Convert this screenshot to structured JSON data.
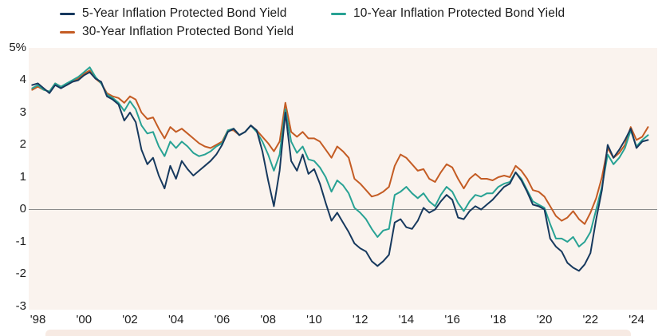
{
  "figure": {
    "background_color": "#ffffff",
    "plot_background_color": "#faf3ee",
    "zero_line_color": "#8c8c8c",
    "text_color": "#1c1c1c",
    "footer_strip_color": "#f7eae3"
  },
  "chart_data": {
    "type": "line",
    "title": "",
    "xlabel": "",
    "ylabel": "",
    "y_unit": "%",
    "grid": false,
    "zero_line": true,
    "legend_position": "top-left, wrapped in two rows",
    "xlim": [
      1997.6,
      2024.9
    ],
    "ylim": [
      -3.1,
      5
    ],
    "x_ticks": {
      "values": [
        1998,
        2000,
        2002,
        2004,
        2006,
        2008,
        2010,
        2012,
        2014,
        2016,
        2018,
        2020,
        2022,
        2024
      ],
      "labels": [
        "'98",
        "'00",
        "'02",
        "'04",
        "'06",
        "'08",
        "'10",
        "'12",
        "'14",
        "'16",
        "'18",
        "'20",
        "'22",
        "'24"
      ]
    },
    "y_ticks": {
      "values": [
        5,
        4,
        3,
        2,
        1,
        0,
        -1,
        -2,
        -3
      ],
      "labels": [
        "5%",
        "4",
        "3",
        "2",
        "1",
        "0",
        "-1",
        "-2",
        "-3"
      ]
    },
    "x": [
      1997.75,
      1998.0,
      1998.25,
      1998.5,
      1998.75,
      1999.0,
      1999.25,
      1999.5,
      1999.75,
      2000.0,
      2000.25,
      2000.5,
      2000.75,
      2001.0,
      2001.25,
      2001.5,
      2001.75,
      2002.0,
      2002.25,
      2002.5,
      2002.75,
      2003.0,
      2003.25,
      2003.5,
      2003.75,
      2004.0,
      2004.25,
      2004.5,
      2004.75,
      2005.0,
      2005.25,
      2005.5,
      2005.75,
      2006.0,
      2006.25,
      2006.5,
      2006.75,
      2007.0,
      2007.25,
      2007.5,
      2007.75,
      2008.0,
      2008.25,
      2008.5,
      2008.75,
      2009.0,
      2009.25,
      2009.5,
      2009.75,
      2010.0,
      2010.25,
      2010.5,
      2010.75,
      2011.0,
      2011.25,
      2011.5,
      2011.75,
      2012.0,
      2012.25,
      2012.5,
      2012.75,
      2013.0,
      2013.25,
      2013.5,
      2013.75,
      2014.0,
      2014.25,
      2014.5,
      2014.75,
      2015.0,
      2015.25,
      2015.5,
      2015.75,
      2016.0,
      2016.25,
      2016.5,
      2016.75,
      2017.0,
      2017.25,
      2017.5,
      2017.75,
      2018.0,
      2018.25,
      2018.5,
      2018.75,
      2019.0,
      2019.25,
      2019.5,
      2019.75,
      2020.0,
      2020.25,
      2020.5,
      2020.75,
      2021.0,
      2021.25,
      2021.5,
      2021.75,
      2022.0,
      2022.25,
      2022.5,
      2022.75,
      2023.0,
      2023.25,
      2023.5,
      2023.75,
      2024.0,
      2024.25,
      2024.5
    ],
    "series": [
      {
        "name": "5-Year Inflation Protected Bond Yield",
        "color": "#17395e",
        "values": [
          3.85,
          3.9,
          3.75,
          3.6,
          3.85,
          3.75,
          3.85,
          3.95,
          4.0,
          4.15,
          4.25,
          4.05,
          3.95,
          3.5,
          3.4,
          3.25,
          2.75,
          3.0,
          2.7,
          1.85,
          1.4,
          1.6,
          1.05,
          0.65,
          1.35,
          0.95,
          1.5,
          1.25,
          1.05,
          1.2,
          1.35,
          1.5,
          1.7,
          2.0,
          2.4,
          2.5,
          2.3,
          2.4,
          2.6,
          2.45,
          1.8,
          0.9,
          0.1,
          1.2,
          3.0,
          1.5,
          1.2,
          1.7,
          1.1,
          1.25,
          0.8,
          0.2,
          -0.35,
          -0.1,
          -0.4,
          -0.7,
          -1.05,
          -1.2,
          -1.3,
          -1.6,
          -1.75,
          -1.6,
          -1.4,
          -0.4,
          -0.3,
          -0.55,
          -0.6,
          -0.35,
          0.05,
          -0.1,
          0.0,
          0.25,
          0.45,
          0.3,
          -0.25,
          -0.3,
          -0.05,
          0.1,
          0.0,
          0.15,
          0.3,
          0.5,
          0.7,
          0.8,
          1.15,
          0.9,
          0.55,
          0.15,
          0.1,
          0.0,
          -0.9,
          -1.15,
          -1.3,
          -1.65,
          -1.8,
          -1.9,
          -1.7,
          -1.35,
          -0.3,
          0.6,
          2.0,
          1.6,
          1.85,
          2.15,
          2.5,
          1.9,
          2.1,
          2.15
        ]
      },
      {
        "name": "10-Year Inflation Protected Bond Yield",
        "color": "#28a294",
        "values": [
          3.75,
          3.85,
          3.7,
          3.65,
          3.9,
          3.8,
          3.9,
          4.0,
          4.1,
          4.25,
          4.4,
          4.1,
          3.9,
          3.55,
          3.45,
          3.3,
          3.05,
          3.35,
          3.1,
          2.6,
          2.35,
          2.4,
          1.95,
          1.65,
          2.1,
          1.9,
          2.1,
          1.95,
          1.75,
          1.65,
          1.7,
          1.8,
          1.95,
          2.05,
          2.45,
          2.5,
          2.3,
          2.4,
          2.6,
          2.4,
          2.1,
          1.7,
          1.2,
          1.7,
          3.1,
          2.1,
          1.75,
          1.95,
          1.55,
          1.5,
          1.3,
          1.0,
          0.55,
          0.9,
          0.75,
          0.5,
          0.05,
          -0.1,
          -0.3,
          -0.6,
          -0.85,
          -0.65,
          -0.6,
          0.45,
          0.55,
          0.7,
          0.5,
          0.35,
          0.5,
          0.25,
          0.1,
          0.45,
          0.7,
          0.55,
          0.2,
          -0.05,
          0.25,
          0.45,
          0.4,
          0.5,
          0.5,
          0.7,
          0.8,
          0.85,
          1.15,
          0.95,
          0.6,
          0.25,
          0.15,
          0.05,
          -0.45,
          -0.9,
          -0.9,
          -1.0,
          -0.85,
          -1.15,
          -1.0,
          -0.7,
          0.0,
          0.7,
          1.7,
          1.4,
          1.6,
          1.9,
          2.45,
          1.95,
          2.15,
          2.3
        ]
      },
      {
        "name": "30-Year Inflation Protected Bond Yield",
        "color": "#c45c24",
        "values": [
          3.7,
          3.8,
          3.7,
          3.65,
          3.9,
          3.8,
          3.85,
          3.95,
          4.05,
          4.2,
          4.3,
          4.05,
          3.9,
          3.6,
          3.5,
          3.45,
          3.3,
          3.5,
          3.4,
          3.0,
          2.8,
          2.85,
          2.5,
          2.2,
          2.55,
          2.4,
          2.5,
          2.35,
          2.2,
          2.05,
          1.95,
          1.9,
          2.0,
          2.1,
          2.45,
          2.45,
          2.3,
          2.4,
          2.6,
          2.45,
          2.25,
          2.05,
          1.8,
          2.1,
          3.3,
          2.4,
          2.25,
          2.4,
          2.2,
          2.2,
          2.1,
          1.85,
          1.6,
          1.95,
          1.8,
          1.6,
          0.95,
          0.8,
          0.6,
          0.4,
          0.45,
          0.55,
          0.7,
          1.35,
          1.7,
          1.6,
          1.4,
          1.2,
          1.25,
          0.95,
          0.85,
          1.15,
          1.4,
          1.3,
          0.95,
          0.65,
          0.95,
          1.1,
          0.95,
          0.95,
          0.9,
          1.0,
          1.05,
          1.0,
          1.35,
          1.2,
          0.95,
          0.6,
          0.55,
          0.4,
          0.1,
          -0.2,
          -0.35,
          -0.25,
          -0.05,
          -0.3,
          -0.45,
          -0.1,
          0.35,
          1.0,
          1.9,
          1.6,
          1.75,
          2.0,
          2.55,
          2.15,
          2.25,
          2.55
        ]
      }
    ]
  }
}
